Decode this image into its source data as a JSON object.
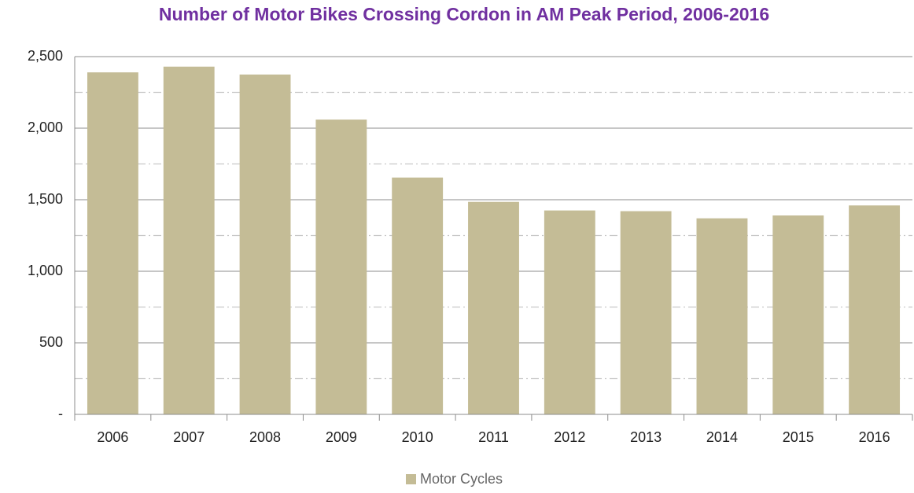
{
  "chart_data": {
    "type": "bar",
    "title": "Number of Motor Bikes Crossing Cordon in AM Peak Period, 2006-2016",
    "title_color": "#7030a0",
    "categories": [
      "2006",
      "2007",
      "2008",
      "2009",
      "2010",
      "2011",
      "2012",
      "2013",
      "2014",
      "2015",
      "2016"
    ],
    "series": [
      {
        "name": "Motor Cycles",
        "color": "#c4bc96",
        "values": [
          2390,
          2430,
          2375,
          2060,
          1655,
          1485,
          1425,
          1420,
          1370,
          1390,
          1460
        ]
      }
    ],
    "ylim": [
      0,
      2500
    ],
    "yticks": [
      {
        "value": 0,
        "label": "-"
      },
      500,
      {
        "value": 1000,
        "label": "1,000"
      },
      {
        "value": 1500,
        "label": "1,500"
      },
      {
        "value": 2000,
        "label": "2,000"
      },
      {
        "value": 2500,
        "label": "2,500"
      }
    ],
    "minor_gridlines": [
      250,
      750,
      1250,
      1750,
      2250
    ],
    "grid": true,
    "legend": "bottom"
  }
}
